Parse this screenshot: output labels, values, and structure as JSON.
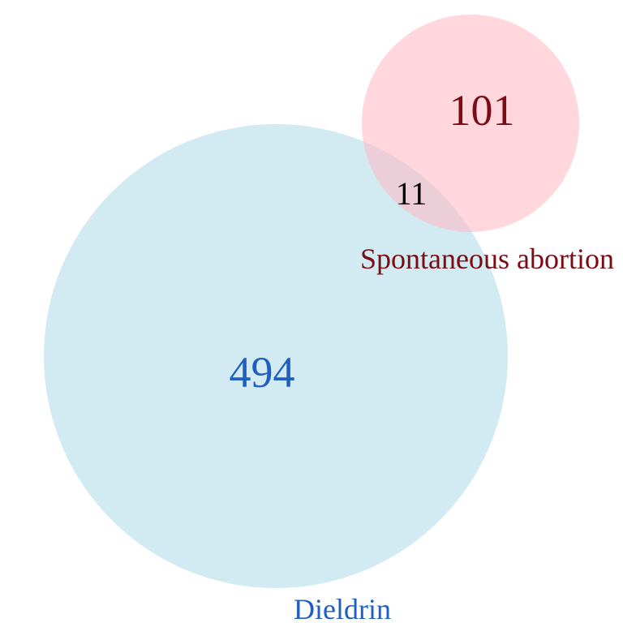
{
  "venn": {
    "sets": [
      {
        "id": "dieldrin",
        "label": "Dieldrin",
        "only_count": "494",
        "fill": "#add8e6",
        "text_color": "#1f5fbf"
      },
      {
        "id": "spontaneous",
        "label": "Spontaneous abortion",
        "only_count": "101",
        "fill": "#ffb6c1",
        "text_color": "#7a0c14"
      }
    ],
    "intersection": {
      "count": "11",
      "text_color": "#000000"
    }
  }
}
